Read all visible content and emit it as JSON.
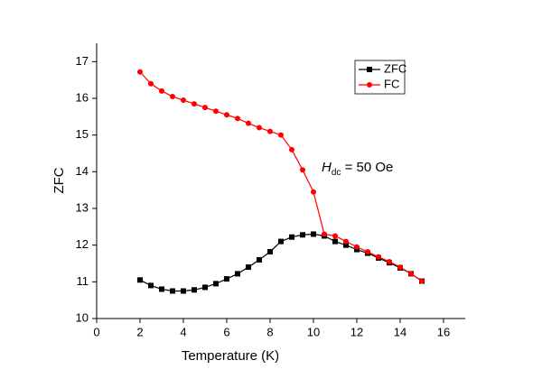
{
  "chart_data": {
    "type": "line",
    "x_label": "Temperature (K)",
    "y_label": "ZFC",
    "annotation": {
      "main": "H",
      "sub": "dc",
      "rest": " = 50 Oe"
    },
    "x": [
      2,
      2.5,
      3,
      3.5,
      4,
      4.5,
      5,
      5.5,
      6,
      6.5,
      7,
      7.5,
      8,
      8.5,
      9,
      9.5,
      10,
      10.5,
      11,
      11.5,
      12,
      12.5,
      13,
      13.5,
      14,
      14.5,
      15
    ],
    "series": [
      {
        "name": "ZFC",
        "color": "#000000",
        "marker": "square",
        "values": [
          11.05,
          10.9,
          10.8,
          10.75,
          10.75,
          10.78,
          10.85,
          10.95,
          11.08,
          11.22,
          11.4,
          11.6,
          11.82,
          12.1,
          12.22,
          12.28,
          12.3,
          12.25,
          12.1,
          12.0,
          11.88,
          11.78,
          11.65,
          11.52,
          11.38,
          11.22,
          11.02
        ]
      },
      {
        "name": "FC",
        "color": "#ff0000",
        "marker": "circle",
        "values": [
          16.72,
          16.4,
          16.2,
          16.05,
          15.95,
          15.85,
          15.75,
          15.65,
          15.55,
          15.45,
          15.32,
          15.2,
          15.1,
          15.0,
          14.6,
          14.05,
          13.45,
          12.3,
          12.25,
          12.1,
          11.95,
          11.82,
          11.68,
          11.55,
          11.4,
          11.22,
          11.02
        ]
      }
    ],
    "xlim": [
      0,
      17
    ],
    "ylim": [
      10,
      17.5
    ],
    "xticks": [
      0,
      2,
      4,
      6,
      8,
      10,
      12,
      14,
      16
    ],
    "yticks": [
      10,
      11,
      12,
      13,
      14,
      15,
      16,
      17
    ],
    "legend": "top-right"
  }
}
